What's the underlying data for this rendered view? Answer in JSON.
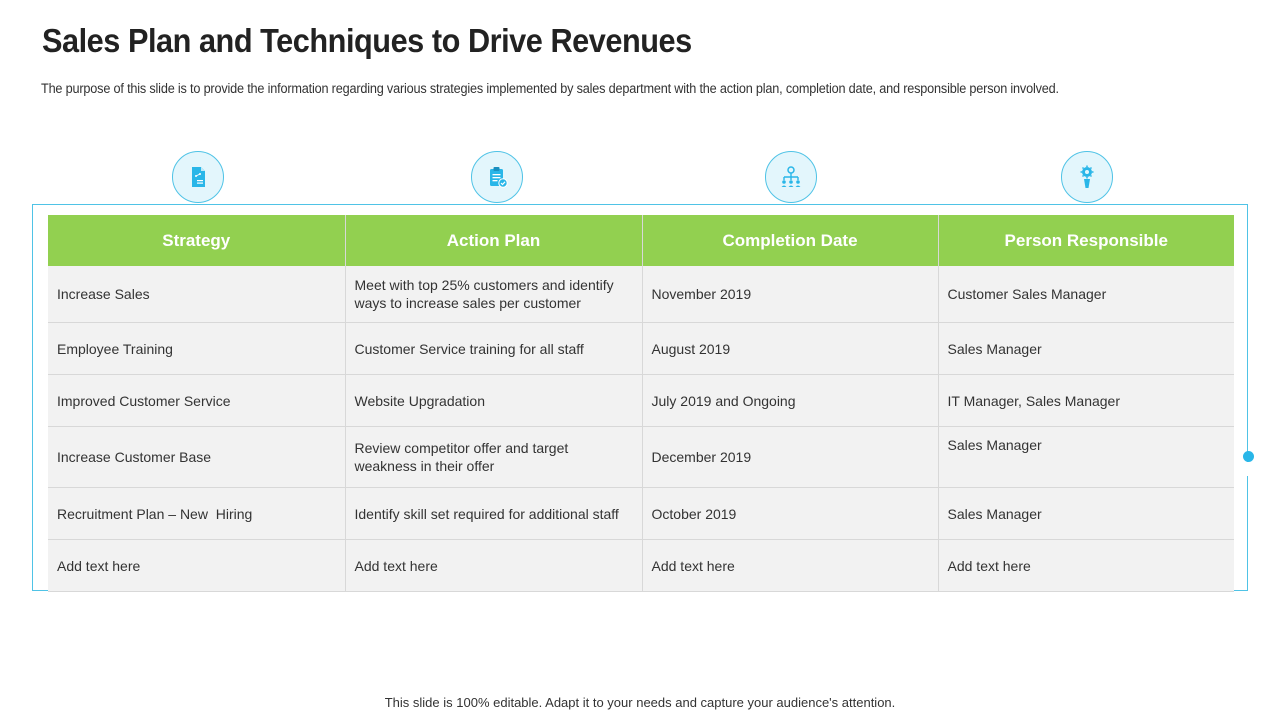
{
  "slide": {
    "title": "Sales Plan and Techniques to Drive Revenues",
    "subtitle": "The purpose of this slide is to provide the information regarding various strategies implemented by sales department with the action plan, completion date, and responsible person involved.",
    "footer": "This slide is 100% editable. Adapt it to your needs and capture your audience's attention."
  },
  "colors": {
    "header_green": "#92d050",
    "accent_blue": "#29b6e8",
    "row_gray": "#f2f2f2"
  },
  "icons": [
    "document-icon",
    "clipboard-check-icon",
    "org-chart-icon",
    "person-gear-icon"
  ],
  "table": {
    "headers": [
      "Strategy",
      "Action Plan",
      "Completion Date",
      "Person Responsible"
    ],
    "rows": [
      [
        "Increase Sales",
        "Meet with top 25% customers and identify ways to increase sales per customer",
        "November 2019",
        "Customer Sales Manager"
      ],
      [
        "Employee Training",
        "Customer Service training for all staff",
        "August 2019",
        "Sales Manager"
      ],
      [
        "Improved Customer Service",
        "Website Upgradation",
        "July 2019 and Ongoing",
        "IT Manager, Sales Manager"
      ],
      [
        "Increase Customer Base",
        "Review competitor offer and target weakness in their offer",
        "December 2019",
        "Sales Manager"
      ],
      [
        "Recruitment Plan – New  Hiring",
        "Identify skill set required for additional staff",
        "October 2019",
        "Sales Manager"
      ],
      [
        "Add text here",
        "Add text here",
        "Add text here",
        "Add text here"
      ]
    ]
  }
}
